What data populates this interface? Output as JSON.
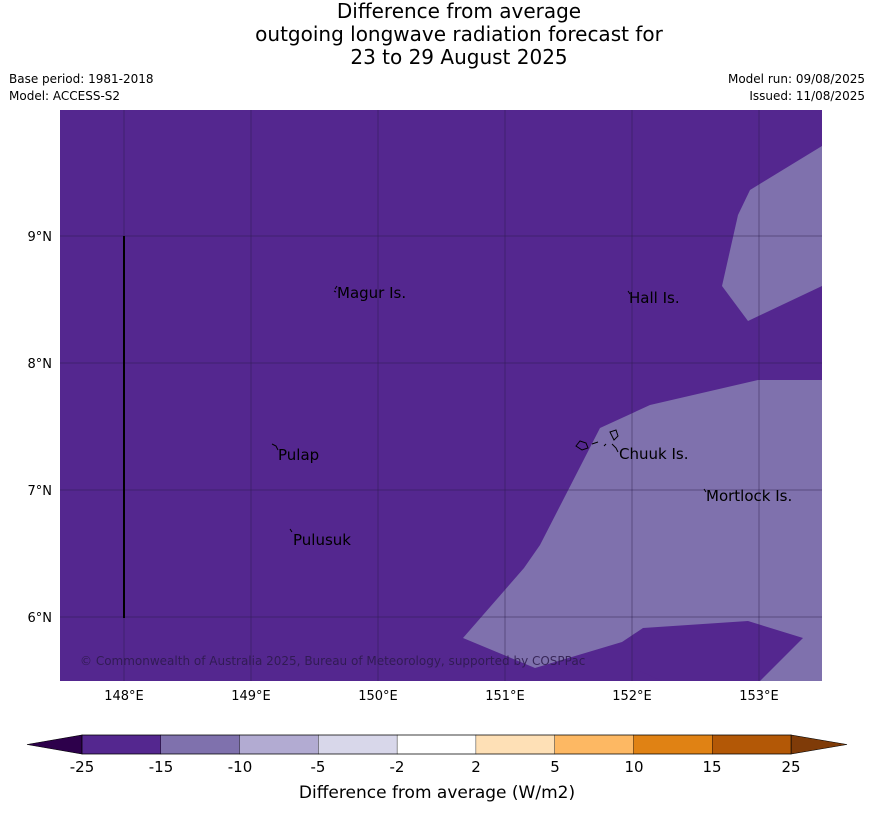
{
  "title": {
    "line1": "Difference from average",
    "line2": "outgoing longwave radiation forecast for",
    "line3": "23 to 29 August 2025"
  },
  "meta": {
    "base_period": "Base period: 1981-2018",
    "model": "Model: ACCESS-S2",
    "model_run": "Model run: 09/08/2025",
    "issued": "Issued: 11/08/2025"
  },
  "map": {
    "lon_ticks": [
      "148°E",
      "149°E",
      "150°E",
      "151°E",
      "152°E",
      "153°E"
    ],
    "lat_ticks": [
      "9°N",
      "8°N",
      "7°N",
      "6°N"
    ],
    "places": [
      {
        "name": "Magur Is."
      },
      {
        "name": "Hall Is."
      },
      {
        "name": "Pulap"
      },
      {
        "name": "Chuuk Is."
      },
      {
        "name": "Mortlock Is."
      },
      {
        "name": "Pulusuk"
      }
    ],
    "copyright": "© Commonwealth of Australia 2025, Bureau of Meteorology, supported by COSPPac"
  },
  "colorbar": {
    "title": "Difference from average (W/m2)",
    "ticks": [
      "-25",
      "-15",
      "-10",
      "-5",
      "-2",
      "2",
      "5",
      "10",
      "15",
      "25"
    ],
    "colors": [
      "#54278f",
      "#7f71ad",
      "#b2abd2",
      "#d8d7ea",
      "#ffffff",
      "#fee0b6",
      "#fdb863",
      "#e08214",
      "#b35806"
    ],
    "under_color": "#2d004b",
    "over_color": "#7f3b08"
  }
}
